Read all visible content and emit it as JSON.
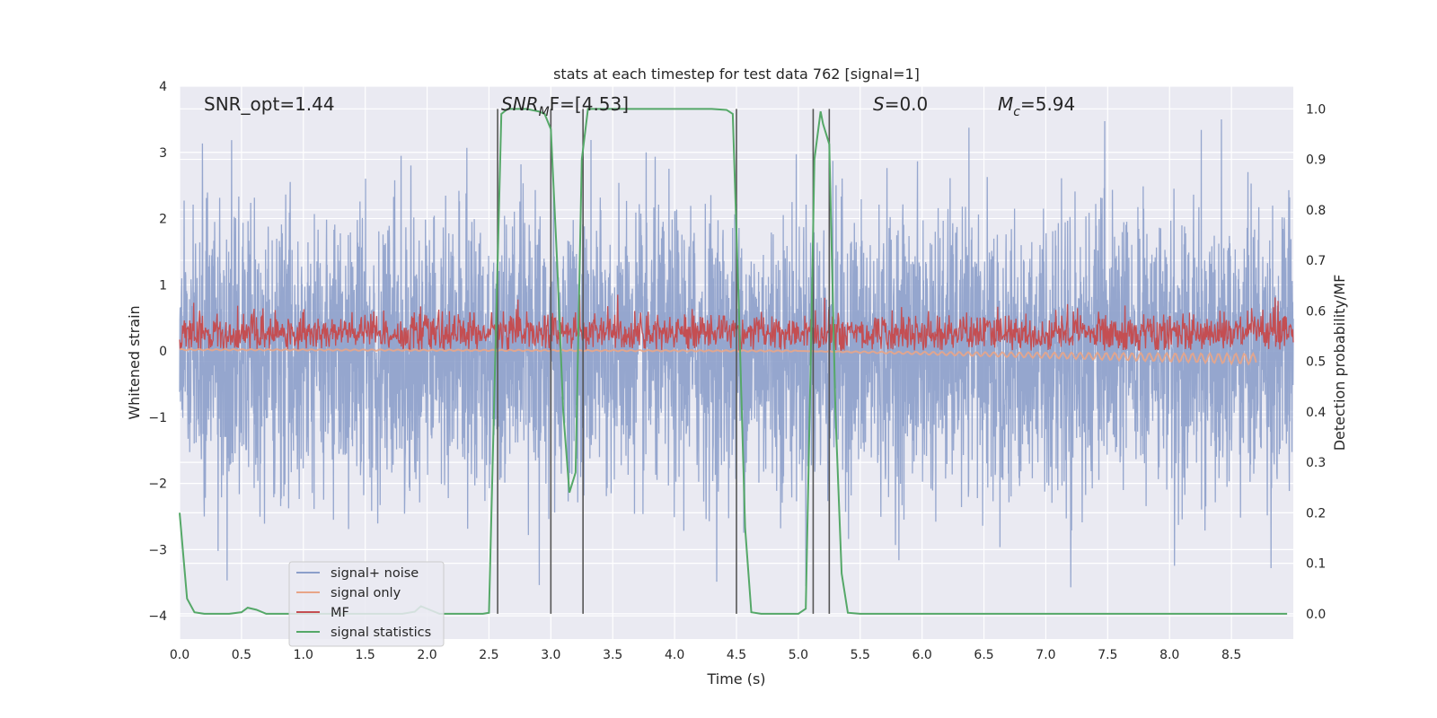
{
  "chart_data": {
    "type": "line",
    "title": "stats at each timestep for test data 762 [signal=1]",
    "xlabel": "Time (s)",
    "ylabel_left": "Whitened strain",
    "ylabel_right": "Detection probability/MF",
    "xlim": [
      0,
      9.0
    ],
    "ylim_left": [
      -4.35,
      4.0
    ],
    "ylim_right": [
      -0.05,
      1.045
    ],
    "xticks": [
      "0.0",
      "0.5",
      "1.0",
      "1.5",
      "2.0",
      "2.5",
      "3.0",
      "3.5",
      "4.0",
      "4.5",
      "5.0",
      "5.5",
      "6.0",
      "6.5",
      "7.0",
      "7.5",
      "8.0",
      "8.5"
    ],
    "yticks_left": [
      "4",
      "3",
      "2",
      "1",
      "0",
      "−1",
      "−2",
      "−3",
      "−4"
    ],
    "yticks_right": [
      "1.0",
      "0.9",
      "0.8",
      "0.7",
      "0.6",
      "0.5",
      "0.4",
      "0.3",
      "0.2",
      "0.1",
      "0.0"
    ],
    "grid": true,
    "legend_position": "lower-left",
    "annotations": {
      "snr_opt": "SNR_opt=1.44",
      "snr_mf_main": "SNR",
      "snr_mf_sub": "M",
      "snr_mf_rest": "F=[4.53]",
      "s_main": "S",
      "s_rest": "=0.0",
      "mc_main": "M",
      "mc_sub": "c",
      "mc_rest": "=5.94"
    },
    "series": [
      {
        "name": "signal+ noise",
        "color": "#8c9fca",
        "envelope_left": {
          "typical_low": -2.0,
          "typical_high": 2.0,
          "peak_low": -3.7,
          "peak_high": 3.5
        }
      },
      {
        "name": "signal only",
        "color": "#e8a588",
        "values_left_x": [
          0,
          5.0,
          8.7
        ],
        "values_left_y": [
          0.02,
          0.0,
          -0.12
        ]
      },
      {
        "name": "MF",
        "color": "#c44e52",
        "band_left": [
          0.0,
          0.55
        ]
      },
      {
        "name": "signal statistics",
        "color": "#55a868",
        "x": [
          0.0,
          0.06,
          0.12,
          0.2,
          0.3,
          0.4,
          0.5,
          0.55,
          0.62,
          0.7,
          0.8,
          0.9,
          1.0,
          1.5,
          1.8,
          1.9,
          1.95,
          2.0,
          2.1,
          2.3,
          2.45,
          2.5,
          2.55,
          2.6,
          2.65,
          2.8,
          2.9,
          2.95,
          3.0,
          3.05,
          3.1,
          3.15,
          3.2,
          3.25,
          3.3,
          3.35,
          3.4,
          3.6,
          4.0,
          4.3,
          4.42,
          4.47,
          4.52,
          4.57,
          4.62,
          4.7,
          4.8,
          5.0,
          5.06,
          5.1,
          5.13,
          5.18,
          5.2,
          5.25,
          5.3,
          5.35,
          5.4,
          5.5,
          6.0,
          7.0,
          8.0,
          8.5,
          8.95
        ],
        "y": [
          0.2,
          0.03,
          0.003,
          0.0,
          0.0,
          0.0,
          0.003,
          0.012,
          0.008,
          0.0,
          0.0,
          0.0,
          0.0,
          0.0,
          0.0,
          0.004,
          0.015,
          0.01,
          0.0,
          0.0,
          0.0,
          0.002,
          0.5,
          0.99,
          1.0,
          1.0,
          0.995,
          0.99,
          0.96,
          0.7,
          0.4,
          0.24,
          0.28,
          0.9,
          1.0,
          1.0,
          1.0,
          1.0,
          1.0,
          1.0,
          0.998,
          0.99,
          0.6,
          0.17,
          0.003,
          0.0,
          0.0,
          0.0,
          0.01,
          0.5,
          0.9,
          0.995,
          0.97,
          0.93,
          0.4,
          0.08,
          0.002,
          0.0,
          0.0,
          0.0,
          0.0,
          0.0,
          0.0
        ]
      }
    ],
    "vertical_markers_x": [
      2.57,
      3.0,
      3.26,
      4.5,
      5.12,
      5.25
    ]
  }
}
